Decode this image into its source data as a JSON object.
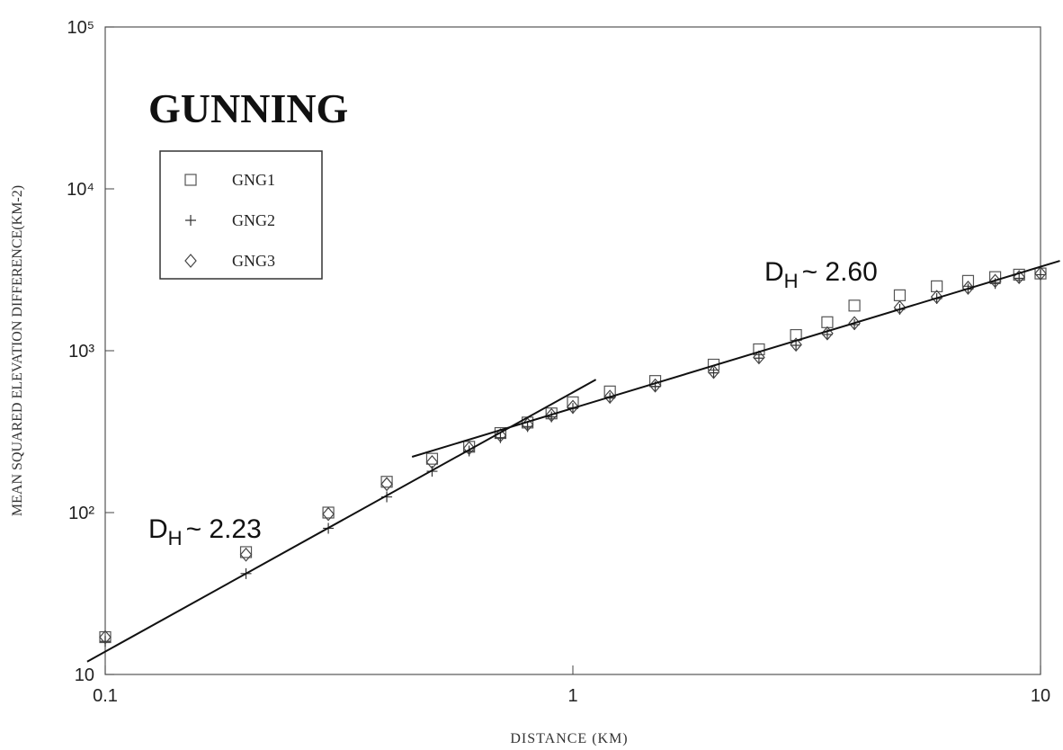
{
  "chart_data": {
    "type": "scatter",
    "title": "GUNNING",
    "x_label": "DISTANCE (KM)",
    "y_label": "MEAN SQUARED ELEVATION DIFFERENCE(KM-2)",
    "log_x": true,
    "log_y": true,
    "xlim": [
      0.1,
      10
    ],
    "ylim": [
      10,
      100000
    ],
    "xticks": [
      0.1,
      1,
      10
    ],
    "yticks": [
      10,
      {
        "value": 100,
        "label": "10²"
      },
      {
        "value": 1000,
        "label": "10³"
      },
      {
        "value": 10000,
        "label": "10⁴"
      },
      {
        "value": 100000,
        "label": "10⁵"
      }
    ],
    "legend": "upper left",
    "x": [
      0.1,
      0.2,
      0.3,
      0.4,
      0.5,
      0.6,
      0.7,
      0.8,
      0.9,
      1.0,
      1.2,
      1.5,
      2,
      2.5,
      3,
      3.5,
      4,
      5,
      6,
      7,
      8,
      9,
      10
    ],
    "series": [
      {
        "name": "GNG1",
        "marker": "square",
        "color": "#555555",
        "values": [
          17,
          57,
          100,
          155,
          215,
          255,
          310,
          360,
          410,
          480,
          560,
          650,
          820,
          1020,
          1250,
          1500,
          1900,
          2200,
          2500,
          2700,
          2850,
          2950,
          3000
        ]
      },
      {
        "name": "GNG2",
        "marker": "plus",
        "color": "#333333",
        "values": [
          16,
          42,
          80,
          125,
          180,
          240,
          290,
          340,
          390,
          440,
          510,
          600,
          730,
          900,
          1080,
          1260,
          1450,
          1800,
          2100,
          2400,
          2600,
          2800,
          2950
        ]
      },
      {
        "name": "GNG3",
        "marker": "diamond",
        "color": "#444444",
        "values": [
          17,
          55,
          98,
          150,
          205,
          250,
          300,
          350,
          400,
          450,
          520,
          610,
          740,
          910,
          1090,
          1280,
          1480,
          1850,
          2150,
          2450,
          2700,
          2850,
          3000
        ]
      }
    ],
    "fit_lines": [
      {
        "symbol": "D",
        "subscript": "H",
        "text": "~ 2.23",
        "x": [
          0.0915,
          1.12
        ],
        "y": [
          12,
          663
        ]
      },
      {
        "symbol": "D",
        "subscript": "H",
        "text": "~ 2.60",
        "x": [
          0.453,
          11
        ],
        "y": [
          221,
          3590
        ]
      }
    ]
  }
}
